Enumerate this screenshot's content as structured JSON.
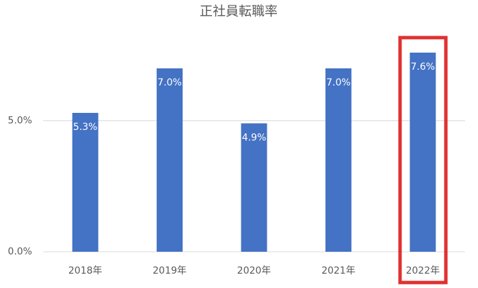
{
  "chart_data": {
    "type": "bar",
    "title": "正社員転職率",
    "categories": [
      "2018年",
      "2019年",
      "2020年",
      "2021年",
      "2022年"
    ],
    "values": [
      5.3,
      7.0,
      4.9,
      7.0,
      7.6
    ],
    "value_labels": [
      "5.3%",
      "7.0%",
      "4.9%",
      "7.0%",
      "7.6%"
    ],
    "color": "#4472c4",
    "ylim": [
      0,
      8
    ],
    "yticks": [
      {
        "value": 0,
        "label": "0.0%"
      },
      {
        "value": 5,
        "label": "5.0%"
      }
    ],
    "grid": true
  }
}
